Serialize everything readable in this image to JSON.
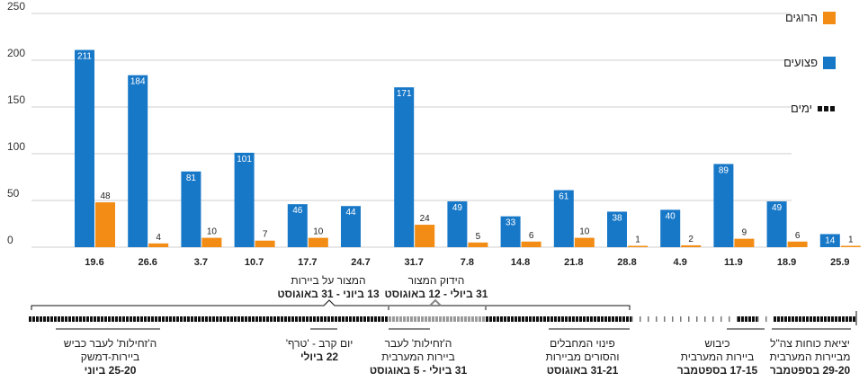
{
  "chart_data": {
    "type": "bar",
    "ylim": [
      0,
      250
    ],
    "yticks": [
      0,
      50,
      100,
      150,
      200,
      250
    ],
    "grid": true,
    "categories": [
      "19.6",
      "26.6",
      "3.7",
      "10.7",
      "17.7",
      "24.7",
      "31.7",
      "7.8",
      "14.8",
      "21.8",
      "28.8",
      "4.9",
      "11.9",
      "18.9",
      "25.9"
    ],
    "series": [
      {
        "name": "פצועים",
        "color": "#1878c8",
        "values": [
          211,
          184,
          81,
          101,
          46,
          44,
          171,
          49,
          33,
          61,
          38,
          40,
          89,
          49,
          14
        ]
      },
      {
        "name": "הרוגים",
        "color": "#f28c14",
        "values": [
          48,
          4,
          10,
          7,
          10,
          null,
          24,
          5,
          6,
          10,
          1,
          2,
          9,
          6,
          1
        ]
      }
    ],
    "legend": {
      "position": "top-right",
      "entries": [
        {
          "label": "הרוגים",
          "color": "#f28c14"
        },
        {
          "label": "פצועים",
          "color": "#1878c8"
        },
        {
          "label": "ימים",
          "color": "#111111"
        }
      ]
    },
    "brackets": [
      {
        "line1": "המצור על ביירות",
        "line2": "13 ביוני - 31 באוגוסט"
      },
      {
        "line1": "הידוק המצור",
        "line2": "31 ביולי - 12 באוגוסט"
      }
    ],
    "timeline_labels": [
      {
        "line1": "ה'זחילות' לעבר כביש",
        "line2": "ביירות-דמשק",
        "line3": "25-20 ביוני"
      },
      {
        "line1": "יום קרב - 'טרף'",
        "line2": "22 ביולי",
        "line3": ""
      },
      {
        "line1": "ה'זחילות' לעבר",
        "line2": "ביירות המערבית",
        "line3": "31 ביולי - 5 באוגוסט"
      },
      {
        "line1": "פינוי המחבלים",
        "line2": "והסורים מביירות",
        "line3": "31-21 באוגוסט"
      },
      {
        "line1": "כיבוש",
        "line2": "ביירות המערבית",
        "line3": "17-15 בספטמבר"
      },
      {
        "line1": "יציאת כוחות צה\"ל",
        "line2": "מביירות המערבית",
        "line3": "29-20 בספטמבר"
      }
    ]
  }
}
